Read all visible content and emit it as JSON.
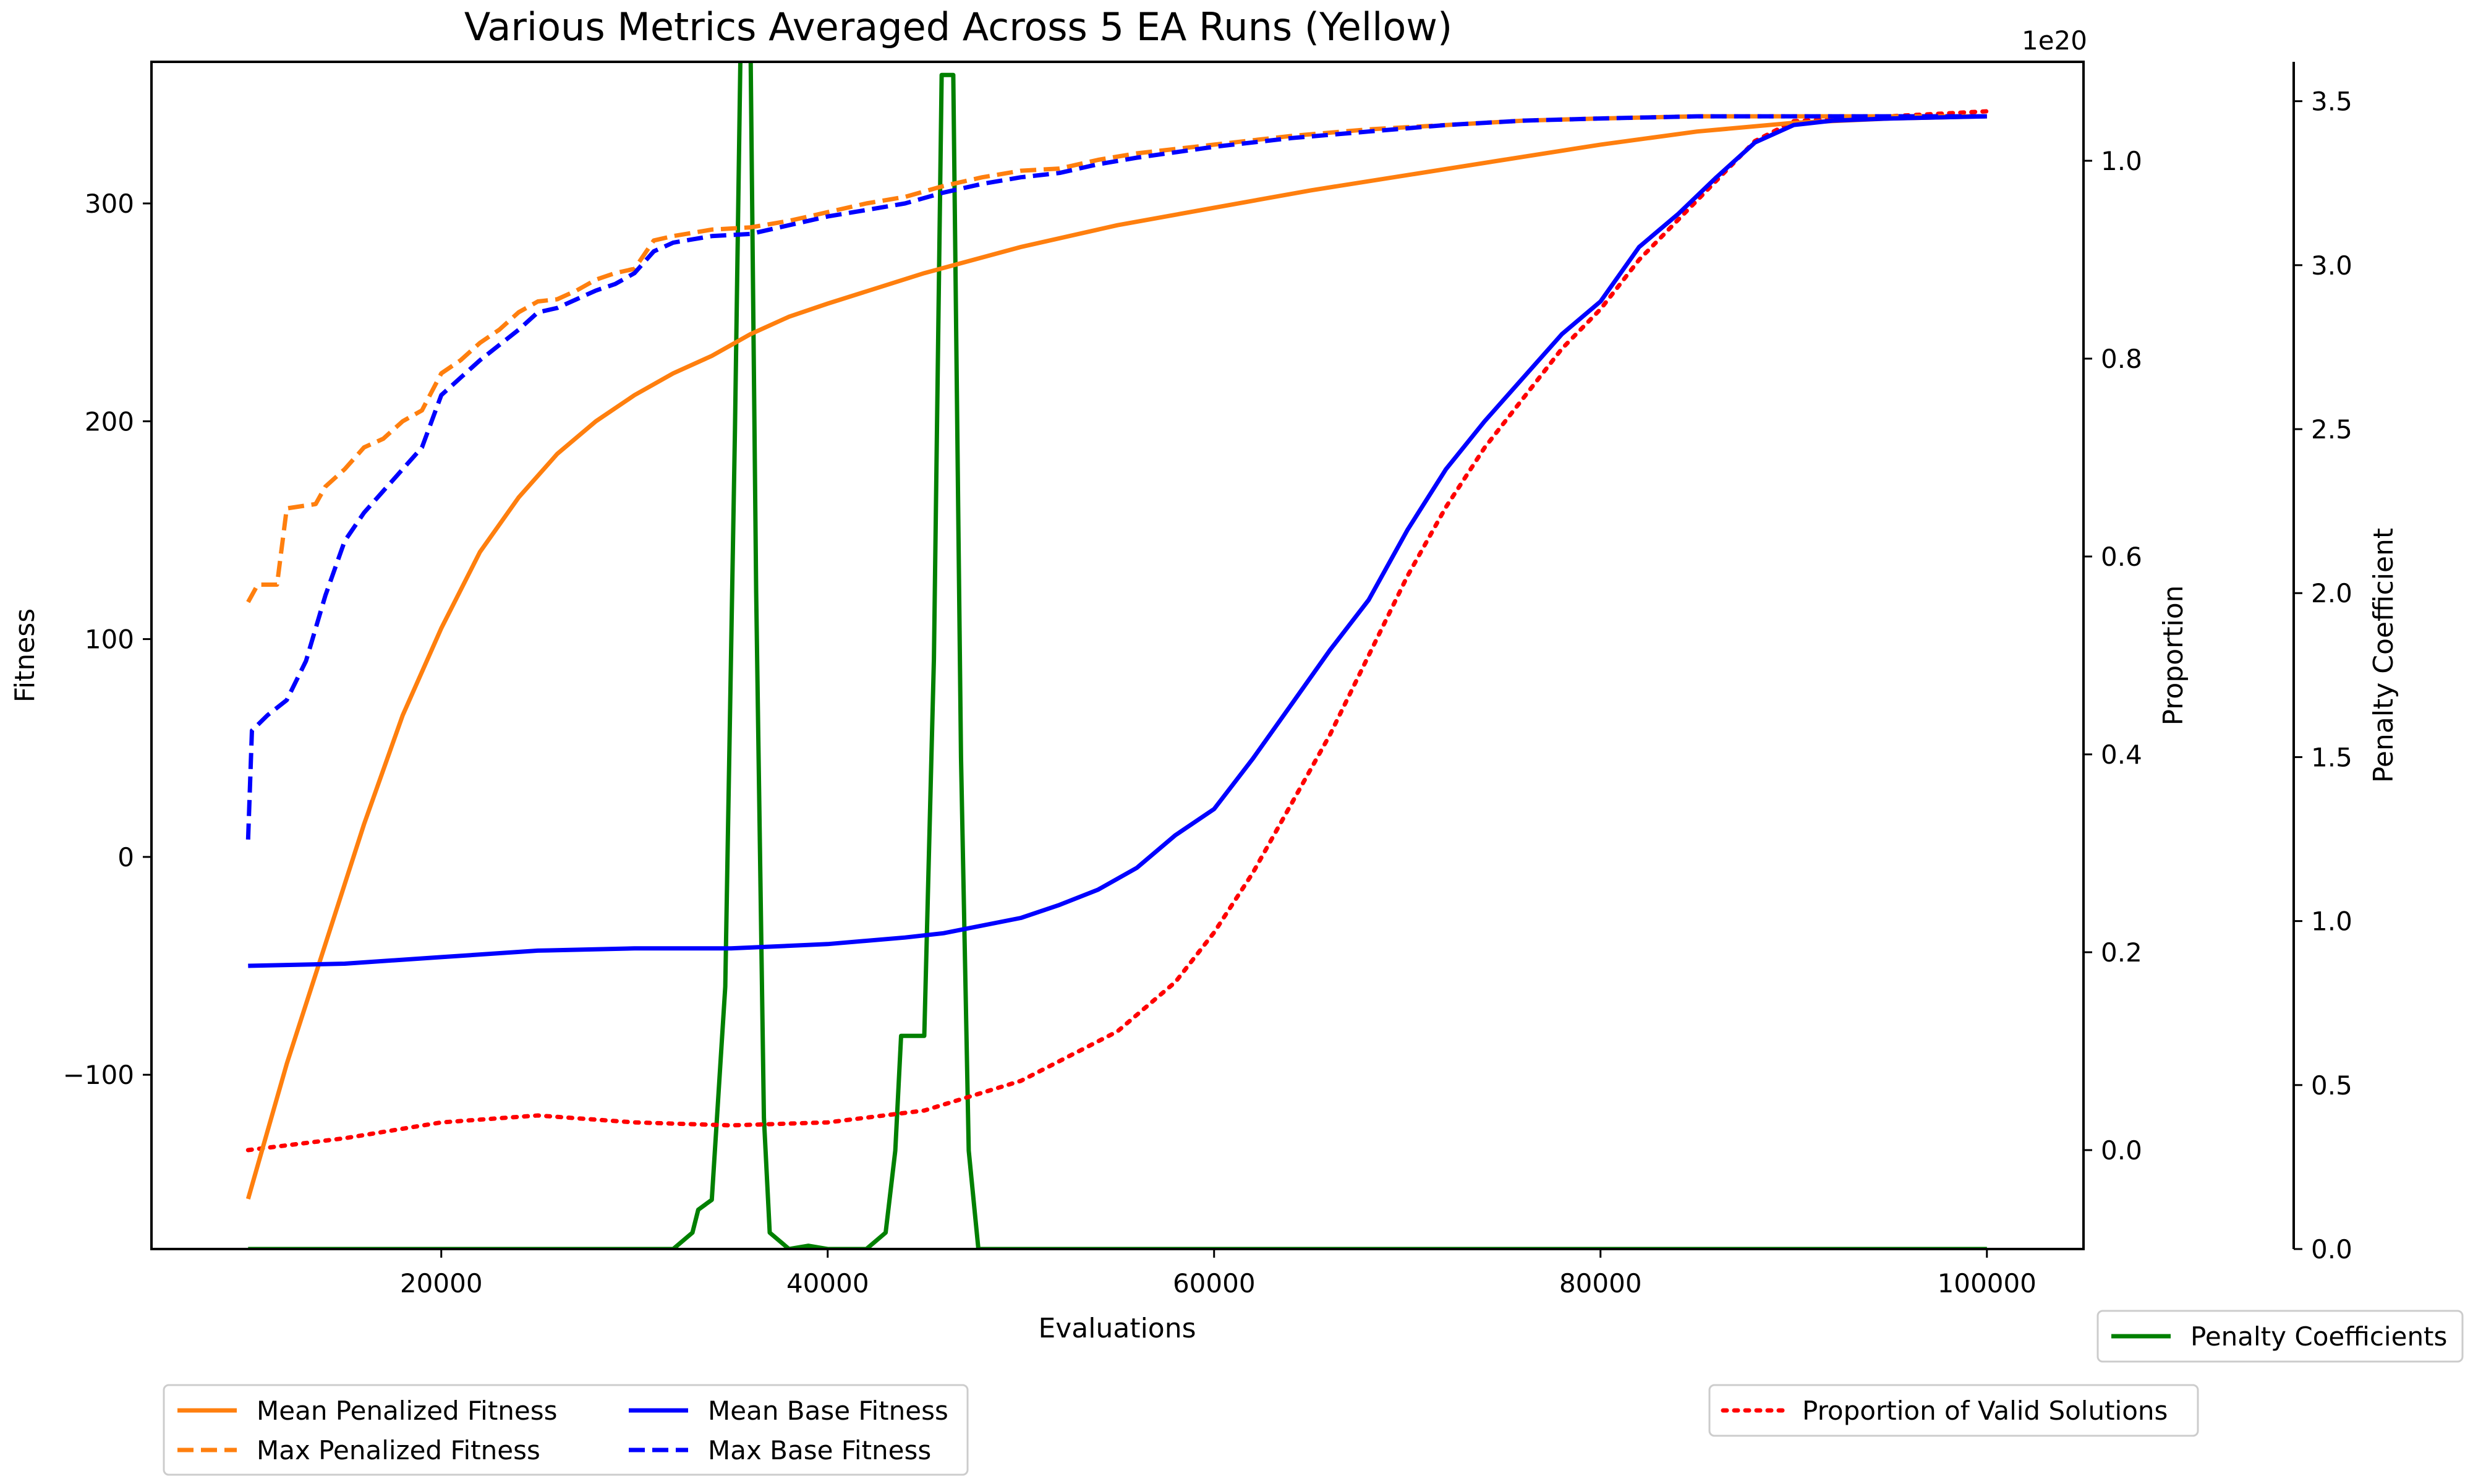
{
  "chart_data": {
    "type": "line",
    "title": "Various Metrics Averaged Across 5 EA Runs (Yellow)",
    "xlabel": "Evaluations",
    "xlim": [
      5000,
      105000
    ],
    "x_ticks": [
      20000,
      40000,
      60000,
      80000,
      100000
    ],
    "x_tick_labels": [
      "20000",
      "40000",
      "60000",
      "80000",
      "100000"
    ],
    "grid": false,
    "axes": {
      "fitness": {
        "label": "Fitness",
        "side": "left",
        "ylim": [
          -180,
          365
        ],
        "ticks": [
          -100,
          0,
          100,
          200,
          300
        ],
        "tick_labels": [
          "−100",
          "0",
          "100",
          "200",
          "300"
        ]
      },
      "proportion": {
        "label": "Proportion",
        "side": "right",
        "ylim": [
          -0.1,
          1.1
        ],
        "ticks": [
          0.0,
          0.2,
          0.4,
          0.6,
          0.8,
          1.0
        ],
        "tick_labels": [
          "0.0",
          "0.2",
          "0.4",
          "0.6",
          "0.8",
          "1.0"
        ]
      },
      "penalty": {
        "label": "Penalty Coefficient",
        "side": "right-outer",
        "ylim": [
          0.0,
          3.62
        ],
        "ticks": [
          0.0,
          0.5,
          1.0,
          1.5,
          2.0,
          2.5,
          3.0,
          3.5
        ],
        "tick_labels": [
          "0.0",
          "0.5",
          "1.0",
          "1.5",
          "2.0",
          "2.5",
          "3.0",
          "3.5"
        ],
        "offset_text": "1e20"
      }
    },
    "series": [
      {
        "name": "Mean Penalized Fitness",
        "axis": "fitness",
        "color": "#ff7f0e",
        "style": "solid",
        "points": [
          [
            10000,
            -157
          ],
          [
            12000,
            -95
          ],
          [
            14000,
            -40
          ],
          [
            16000,
            15
          ],
          [
            18000,
            65
          ],
          [
            20000,
            105
          ],
          [
            22000,
            140
          ],
          [
            24000,
            165
          ],
          [
            26000,
            185
          ],
          [
            28000,
            200
          ],
          [
            30000,
            212
          ],
          [
            32000,
            222
          ],
          [
            34000,
            230
          ],
          [
            36000,
            240
          ],
          [
            38000,
            248
          ],
          [
            40000,
            254
          ],
          [
            45000,
            268
          ],
          [
            50000,
            280
          ],
          [
            55000,
            290
          ],
          [
            60000,
            298
          ],
          [
            65000,
            306
          ],
          [
            70000,
            313
          ],
          [
            75000,
            320
          ],
          [
            80000,
            327
          ],
          [
            85000,
            333
          ],
          [
            90000,
            337
          ],
          [
            95000,
            339
          ],
          [
            100000,
            340
          ]
        ]
      },
      {
        "name": "Max Penalized Fitness",
        "axis": "fitness",
        "color": "#ff7f0e",
        "style": "dashed",
        "points": [
          [
            10000,
            117
          ],
          [
            10500,
            125
          ],
          [
            11500,
            125
          ],
          [
            12000,
            160
          ],
          [
            13500,
            162
          ],
          [
            14000,
            170
          ],
          [
            15000,
            178
          ],
          [
            16000,
            188
          ],
          [
            17000,
            192
          ],
          [
            18000,
            200
          ],
          [
            19000,
            205
          ],
          [
            20000,
            222
          ],
          [
            21000,
            228
          ],
          [
            22000,
            236
          ],
          [
            23000,
            242
          ],
          [
            24000,
            250
          ],
          [
            25000,
            255
          ],
          [
            26000,
            256
          ],
          [
            27000,
            260
          ],
          [
            28000,
            265
          ],
          [
            29000,
            268
          ],
          [
            30000,
            270
          ],
          [
            31000,
            283
          ],
          [
            32000,
            285
          ],
          [
            34000,
            288
          ],
          [
            36000,
            289
          ],
          [
            38000,
            292
          ],
          [
            40000,
            296
          ],
          [
            42000,
            300
          ],
          [
            44000,
            303
          ],
          [
            46000,
            308
          ],
          [
            48000,
            312
          ],
          [
            50000,
            315
          ],
          [
            52000,
            316
          ],
          [
            54000,
            320
          ],
          [
            56000,
            323
          ],
          [
            60000,
            327
          ],
          [
            64000,
            331
          ],
          [
            68000,
            334
          ],
          [
            72000,
            336
          ],
          [
            76000,
            338
          ],
          [
            80000,
            339
          ],
          [
            85000,
            340
          ],
          [
            90000,
            340
          ],
          [
            100000,
            340
          ]
        ]
      },
      {
        "name": "Mean Base Fitness",
        "axis": "fitness",
        "color": "#0000ff",
        "style": "solid",
        "points": [
          [
            10000,
            -50
          ],
          [
            15000,
            -49
          ],
          [
            20000,
            -46
          ],
          [
            25000,
            -43
          ],
          [
            30000,
            -42
          ],
          [
            35000,
            -42
          ],
          [
            40000,
            -40
          ],
          [
            44000,
            -37
          ],
          [
            46000,
            -35
          ],
          [
            50000,
            -28
          ],
          [
            52000,
            -22
          ],
          [
            54000,
            -15
          ],
          [
            56000,
            -5
          ],
          [
            58000,
            10
          ],
          [
            60000,
            22
          ],
          [
            62000,
            45
          ],
          [
            64000,
            70
          ],
          [
            66000,
            95
          ],
          [
            68000,
            118
          ],
          [
            70000,
            150
          ],
          [
            72000,
            178
          ],
          [
            74000,
            200
          ],
          [
            76000,
            220
          ],
          [
            78000,
            240
          ],
          [
            80000,
            255
          ],
          [
            82000,
            280
          ],
          [
            84000,
            295
          ],
          [
            86000,
            312
          ],
          [
            88000,
            328
          ],
          [
            90000,
            336
          ],
          [
            92000,
            338
          ],
          [
            95000,
            339
          ],
          [
            100000,
            340
          ]
        ]
      },
      {
        "name": "Max Base Fitness",
        "axis": "fitness",
        "color": "#0000ff",
        "style": "dashed",
        "points": [
          [
            10000,
            8
          ],
          [
            10200,
            58
          ],
          [
            11000,
            65
          ],
          [
            12000,
            72
          ],
          [
            13000,
            90
          ],
          [
            14000,
            120
          ],
          [
            15000,
            145
          ],
          [
            16000,
            158
          ],
          [
            17000,
            168
          ],
          [
            18000,
            178
          ],
          [
            19000,
            188
          ],
          [
            20000,
            212
          ],
          [
            21000,
            220
          ],
          [
            22000,
            228
          ],
          [
            23000,
            235
          ],
          [
            24000,
            242
          ],
          [
            25000,
            250
          ],
          [
            26000,
            252
          ],
          [
            27000,
            256
          ],
          [
            28000,
            260
          ],
          [
            29000,
            263
          ],
          [
            30000,
            268
          ],
          [
            31000,
            278
          ],
          [
            32000,
            282
          ],
          [
            34000,
            285
          ],
          [
            36000,
            286
          ],
          [
            38000,
            290
          ],
          [
            40000,
            294
          ],
          [
            42000,
            297
          ],
          [
            44000,
            300
          ],
          [
            46000,
            305
          ],
          [
            48000,
            309
          ],
          [
            50000,
            312
          ],
          [
            52000,
            314
          ],
          [
            54000,
            318
          ],
          [
            56000,
            321
          ],
          [
            60000,
            326
          ],
          [
            64000,
            330
          ],
          [
            68000,
            333
          ],
          [
            72000,
            336
          ],
          [
            76000,
            338
          ],
          [
            80000,
            339
          ],
          [
            85000,
            340
          ],
          [
            90000,
            340
          ],
          [
            100000,
            340
          ]
        ]
      },
      {
        "name": "Proportion of Valid Solutions",
        "axis": "proportion",
        "color": "#ff0000",
        "style": "dotted",
        "points": [
          [
            10000,
            0.0
          ],
          [
            15000,
            0.012
          ],
          [
            20000,
            0.028
          ],
          [
            25000,
            0.035
          ],
          [
            30000,
            0.028
          ],
          [
            35000,
            0.025
          ],
          [
            40000,
            0.028
          ],
          [
            45000,
            0.04
          ],
          [
            50000,
            0.07
          ],
          [
            55000,
            0.12
          ],
          [
            58000,
            0.17
          ],
          [
            60000,
            0.22
          ],
          [
            62000,
            0.28
          ],
          [
            64000,
            0.35
          ],
          [
            66000,
            0.42
          ],
          [
            68000,
            0.5
          ],
          [
            70000,
            0.58
          ],
          [
            72000,
            0.65
          ],
          [
            74000,
            0.71
          ],
          [
            76000,
            0.76
          ],
          [
            78000,
            0.81
          ],
          [
            80000,
            0.85
          ],
          [
            82000,
            0.9
          ],
          [
            84000,
            0.94
          ],
          [
            86000,
            0.98
          ],
          [
            88000,
            1.02
          ],
          [
            90000,
            1.04
          ],
          [
            95000,
            1.045
          ],
          [
            100000,
            1.05
          ]
        ]
      },
      {
        "name": "Penalty Coefficients",
        "axis": "penalty",
        "color": "#008000",
        "style": "solid",
        "points": [
          [
            10000,
            0.0
          ],
          [
            32000,
            0.0
          ],
          [
            33000,
            0.05
          ],
          [
            33300,
            0.12
          ],
          [
            34000,
            0.15
          ],
          [
            34700,
            0.8
          ],
          [
            35200,
            2.5
          ],
          [
            35500,
            3.7
          ],
          [
            36000,
            3.7
          ],
          [
            36300,
            2.0
          ],
          [
            36700,
            0.4
          ],
          [
            37000,
            0.05
          ],
          [
            38000,
            0.0
          ],
          [
            39000,
            0.01
          ],
          [
            40000,
            0.0
          ],
          [
            42000,
            0.0
          ],
          [
            43000,
            0.05
          ],
          [
            43500,
            0.3
          ],
          [
            43800,
            0.65
          ],
          [
            45000,
            0.65
          ],
          [
            45500,
            1.8
          ],
          [
            45900,
            3.58
          ],
          [
            46500,
            3.58
          ],
          [
            46900,
            1.5
          ],
          [
            47300,
            0.3
          ],
          [
            47800,
            0.0
          ],
          [
            100000,
            0.0
          ]
        ]
      }
    ],
    "legends": [
      {
        "placement": "bottom-left",
        "columns": 2,
        "entries": [
          "Mean Penalized Fitness",
          "Max Penalized Fitness",
          "Mean Base Fitness",
          "Max Base Fitness"
        ]
      },
      {
        "placement": "bottom-right-upper",
        "columns": 1,
        "entries": [
          "Penalty Coefficients"
        ]
      },
      {
        "placement": "bottom-right-lower",
        "columns": 1,
        "entries": [
          "Proportion of Valid Solutions"
        ]
      }
    ]
  }
}
